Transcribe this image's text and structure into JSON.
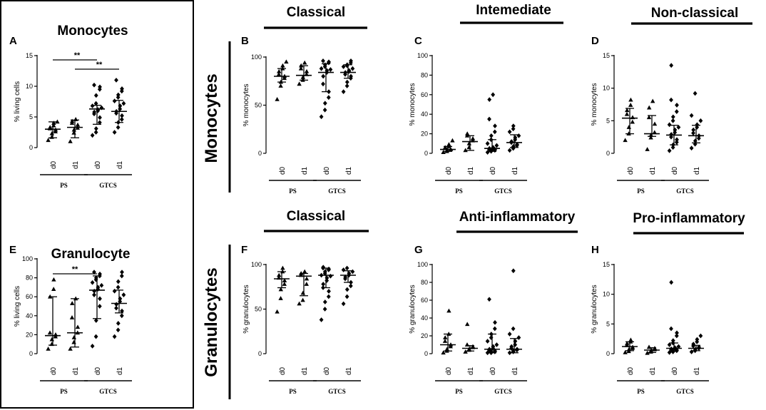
{
  "side_labels": [
    "Monocytes",
    "Granulocytes"
  ],
  "chart_data": [
    {
      "type": "scatter",
      "panel": "A",
      "title": "Monocytes",
      "title_style": "big",
      "ylabel": "% living cells",
      "ylim": [
        0,
        15
      ],
      "yticks": [
        0,
        5,
        10,
        15
      ],
      "categories": [
        "d0",
        "d1",
        "d0",
        "d1"
      ],
      "groups": [
        "PS",
        "GTCS"
      ],
      "markers": [
        "triangle",
        "triangle",
        "diamond",
        "diamond"
      ],
      "points": [
        [
          1.2,
          1.7,
          2.3,
          2.6,
          2.9,
          3.1,
          3.3,
          3.6,
          4.0,
          4.2
        ],
        [
          1.0,
          2.4,
          2.9,
          3.2,
          3.7,
          4.0,
          4.3,
          4.6
        ],
        [
          2.0,
          2.5,
          3.1,
          4.1,
          4.9,
          5.5,
          5.8,
          6.0,
          6.2,
          6.5,
          6.8,
          7.2,
          8.5,
          9.5,
          9.9,
          10.2
        ],
        [
          2.5,
          3.3,
          4.1,
          4.6,
          5.2,
          5.6,
          5.9,
          6.3,
          6.8,
          7.2,
          7.6,
          8.2,
          8.6,
          9.2,
          9.6,
          11.0
        ]
      ],
      "median": [
        3.0,
        3.3,
        6.3,
        5.9
      ],
      "iqr_low": [
        1.6,
        1.6,
        3.8,
        4.1
      ],
      "iqr_high": [
        4.2,
        4.5,
        6.9,
        7.7
      ],
      "significance": [
        {
          "from": 0,
          "to": 2,
          "label": "**"
        },
        {
          "from": 1,
          "to": 3,
          "label": "**"
        }
      ]
    },
    {
      "type": "scatter",
      "panel": "B",
      "title": "Classical",
      "title_style": "bar",
      "ylabel": "% monocytes",
      "ylim": [
        0,
        100
      ],
      "yticks": [
        0,
        50,
        100
      ],
      "categories": [
        "d0",
        "d1",
        "d0",
        "d1"
      ],
      "groups": [
        "PS",
        "GTCS"
      ],
      "markers": [
        "triangle",
        "triangle",
        "diamond",
        "diamond"
      ],
      "points": [
        [
          56,
          70,
          74,
          78,
          80,
          82,
          85,
          88,
          91,
          95
        ],
        [
          72,
          76,
          79,
          82,
          85,
          88,
          91,
          94
        ],
        [
          38,
          45,
          52,
          58,
          64,
          72,
          80,
          84,
          86,
          87,
          88,
          90,
          92,
          94,
          95,
          96
        ],
        [
          64,
          70,
          74,
          78,
          80,
          82,
          84,
          85,
          86,
          88,
          90,
          91,
          92,
          94,
          96
        ]
      ],
      "median": [
        80,
        81,
        84,
        84
      ],
      "iqr_low": [
        74,
        76,
        64,
        78
      ],
      "iqr_high": [
        88,
        91,
        93,
        92
      ]
    },
    {
      "type": "scatter",
      "panel": "C",
      "title": "Intemediate",
      "title_style": "bar",
      "ylabel": "% monocytes",
      "ylim": [
        0,
        100
      ],
      "yticks": [
        0,
        20,
        40,
        60,
        80,
        100
      ],
      "categories": [
        "d0",
        "d1",
        "d0",
        "d1"
      ],
      "groups": [
        "PS",
        "GTCS"
      ],
      "markers": [
        "triangle",
        "triangle",
        "diamond",
        "diamond"
      ],
      "points": [
        [
          1,
          2,
          3,
          4,
          4,
          5,
          6,
          7,
          9,
          13
        ],
        [
          3,
          6,
          10,
          13,
          15,
          18,
          20
        ],
        [
          1,
          2,
          3,
          3,
          4,
          4,
          5,
          5,
          6,
          8,
          10,
          14,
          18,
          22,
          28,
          35,
          55,
          60
        ],
        [
          3,
          5,
          7,
          8,
          9,
          11,
          12,
          14,
          16,
          18,
          22,
          25,
          28
        ]
      ],
      "median": [
        4,
        12,
        5,
        11
      ],
      "iqr_low": [
        2,
        3,
        2,
        6
      ],
      "iqr_high": [
        7,
        18,
        14,
        19
      ]
    },
    {
      "type": "scatter",
      "panel": "D",
      "title": "Non-classical",
      "title_style": "bar",
      "ylabel": "% monocytes",
      "ylim": [
        0,
        15
      ],
      "yticks": [
        0,
        5,
        10,
        15
      ],
      "categories": [
        "d0",
        "d1",
        "d0",
        "d1"
      ],
      "groups": [
        "PS",
        "GTCS"
      ],
      "markers": [
        "triangle",
        "triangle",
        "diamond",
        "diamond"
      ],
      "points": [
        [
          2.0,
          3.0,
          4.0,
          4.8,
          5.5,
          6.0,
          6.6,
          7.4,
          8.2
        ],
        [
          0.6,
          2.4,
          2.8,
          3.2,
          4.5,
          5.5,
          7.0,
          8.0
        ],
        [
          0.4,
          0.9,
          1.3,
          1.7,
          2.1,
          2.5,
          2.9,
          3.2,
          3.6,
          4.0,
          4.4,
          5.0,
          5.6,
          6.4,
          7.4,
          8.2,
          13.5
        ],
        [
          0.8,
          1.4,
          1.9,
          2.3,
          2.7,
          3.1,
          3.6,
          4.0,
          4.4,
          5.0,
          5.8,
          9.2
        ]
      ],
      "median": [
        5.4,
        3.0,
        2.8,
        2.7
      ],
      "iqr_low": [
        3.0,
        2.6,
        1.3,
        1.6
      ],
      "iqr_high": [
        6.9,
        5.8,
        4.3,
        4.3
      ]
    },
    {
      "type": "scatter",
      "panel": "E",
      "title": "Granulocyte",
      "title_style": "big",
      "ylabel": "% living cells",
      "ylim": [
        0,
        100
      ],
      "yticks": [
        0,
        20,
        40,
        60,
        80,
        100
      ],
      "categories": [
        "d0",
        "d1",
        "d0",
        "d1"
      ],
      "groups": [
        "PS",
        "GTCS"
      ],
      "markers": [
        "triangle",
        "triangle",
        "diamond",
        "diamond"
      ],
      "points": [
        [
          5,
          10,
          15,
          18,
          20,
          22,
          60,
          68,
          78
        ],
        [
          5,
          12,
          17,
          22,
          28,
          38,
          53,
          58
        ],
        [
          8,
          18,
          35,
          50,
          58,
          62,
          66,
          68,
          70,
          72,
          75,
          78,
          80,
          82,
          84,
          86
        ],
        [
          18,
          25,
          32,
          40,
          45,
          48,
          52,
          55,
          58,
          62,
          66,
          70,
          76,
          82,
          86
        ]
      ],
      "median": [
        19,
        22,
        67,
        53
      ],
      "iqr_low": [
        9,
        7,
        37,
        43
      ],
      "iqr_high": [
        60,
        58,
        82,
        67
      ],
      "significance": [
        {
          "from": 0,
          "to": 2,
          "label": "**"
        }
      ]
    },
    {
      "type": "scatter",
      "panel": "F",
      "title": "Classical",
      "title_style": "bar",
      "ylabel": "% granulocytes",
      "ylim": [
        0,
        100
      ],
      "yticks": [
        0,
        50,
        100
      ],
      "categories": [
        "d0",
        "d1",
        "d0",
        "d1"
      ],
      "groups": [
        "PS",
        "GTCS"
      ],
      "markers": [
        "triangle",
        "triangle",
        "diamond",
        "diamond"
      ],
      "points": [
        [
          47,
          62,
          72,
          78,
          82,
          85,
          88,
          92,
          96
        ],
        [
          56,
          60,
          68,
          78,
          84,
          88,
          90,
          92
        ],
        [
          38,
          50,
          58,
          64,
          70,
          74,
          78,
          82,
          85,
          87,
          88,
          90,
          92,
          94,
          95,
          96,
          97
        ],
        [
          56,
          64,
          72,
          76,
          80,
          84,
          86,
          88,
          90,
          92,
          94,
          96
        ]
      ],
      "median": [
        84,
        87,
        88,
        88
      ],
      "iqr_low": [
        74,
        65,
        74,
        80
      ],
      "iqr_high": [
        92,
        90,
        96,
        93
      ]
    },
    {
      "type": "scatter",
      "panel": "G",
      "title": "Anti-inflammatory",
      "title_style": "bar",
      "ylabel": "% granulocytes",
      "ylim": [
        0,
        100
      ],
      "yticks": [
        0,
        20,
        40,
        60,
        80,
        100
      ],
      "categories": [
        "d0",
        "d1",
        "d0",
        "d1"
      ],
      "groups": [
        "PS",
        "GTCS"
      ],
      "markers": [
        "triangle",
        "triangle",
        "diamond",
        "diamond"
      ],
      "points": [
        [
          1,
          3,
          5,
          8,
          10,
          14,
          18,
          22,
          48
        ],
        [
          2,
          4,
          5,
          7,
          8,
          10,
          33
        ],
        [
          1,
          1,
          2,
          2,
          3,
          4,
          5,
          6,
          8,
          10,
          14,
          18,
          22,
          28,
          35,
          61
        ],
        [
          1,
          2,
          3,
          4,
          5,
          6,
          8,
          10,
          14,
          18,
          22,
          28,
          93
        ]
      ],
      "median": [
        10,
        6,
        5,
        5
      ],
      "iqr_low": [
        3,
        3,
        1,
        1
      ],
      "iqr_high": [
        22,
        9,
        22,
        17
      ]
    },
    {
      "type": "scatter",
      "panel": "H",
      "title": "Pro-inflammatory",
      "title_style": "bar",
      "ylabel": "% granulocytes",
      "ylim": [
        0,
        15
      ],
      "yticks": [
        0,
        5,
        10,
        15
      ],
      "categories": [
        "d0",
        "d1",
        "d0",
        "d1"
      ],
      "groups": [
        "PS",
        "GTCS"
      ],
      "markers": [
        "triangle",
        "triangle",
        "diamond",
        "diamond"
      ],
      "points": [
        [
          0.2,
          0.4,
          0.7,
          0.9,
          1.1,
          1.4,
          1.7,
          2.0,
          2.3
        ],
        [
          0.1,
          0.3,
          0.5,
          0.7,
          0.9,
          1.1
        ],
        [
          0.2,
          0.3,
          0.4,
          0.5,
          0.6,
          0.7,
          0.8,
          0.9,
          1.0,
          1.2,
          1.5,
          1.8,
          2.2,
          3.0,
          3.5,
          4.2,
          12.0
        ],
        [
          0.3,
          0.5,
          0.7,
          0.9,
          1.1,
          1.3,
          1.6,
          2.0,
          2.4,
          3.0
        ]
      ],
      "median": [
        1.2,
        0.6,
        0.9,
        0.9
      ],
      "iqr_low": [
        0.5,
        0.2,
        0.4,
        0.5
      ],
      "iqr_high": [
        2.0,
        1.0,
        1.8,
        1.4
      ]
    }
  ]
}
